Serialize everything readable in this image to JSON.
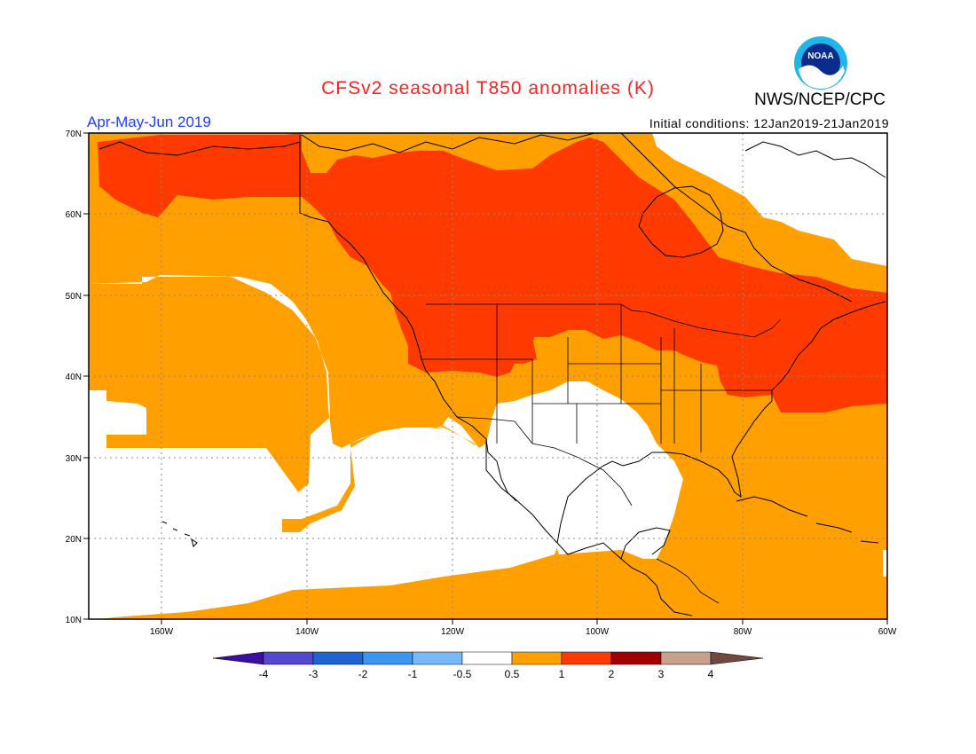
{
  "title": "CFSv2 seasonal T850 anomalies (K)",
  "agency": "NWS/NCEP/CPC",
  "logo_text": "NOAA",
  "period": "Apr-May-Jun 2019",
  "initial_conditions": "Initial conditions: 12Jan2019-21Jan2019",
  "colors": {
    "title": "#ff2020",
    "period": "#1e3cff",
    "warm_0_5_1": "#ffa000",
    "warm_1_2": "#ff3a00",
    "warm_2_3": "#a00000",
    "white": "#ffffff"
  },
  "map": {
    "lon_range": [
      -170,
      -60
    ],
    "lat_range": [
      10,
      70
    ],
    "lon_ticks": [
      "160W",
      "140W",
      "120W",
      "100W",
      "80W",
      "60W"
    ],
    "lat_ticks": [
      "10N",
      "20N",
      "30N",
      "40N",
      "50N",
      "60N",
      "70N"
    ],
    "grid": true
  },
  "colorbar": {
    "labels": [
      "-4",
      "-3",
      "-2",
      "-1",
      "-0.5",
      "0.5",
      "1",
      "2",
      "3",
      "4"
    ],
    "colors": [
      "#3b0f9e",
      "#5548d0",
      "#1e64d2",
      "#3c96f0",
      "#78b9fa",
      "#ffffff",
      "#ffa000",
      "#ff3a00",
      "#a00000",
      "#c8a08c",
      "#6e4b3c"
    ]
  }
}
